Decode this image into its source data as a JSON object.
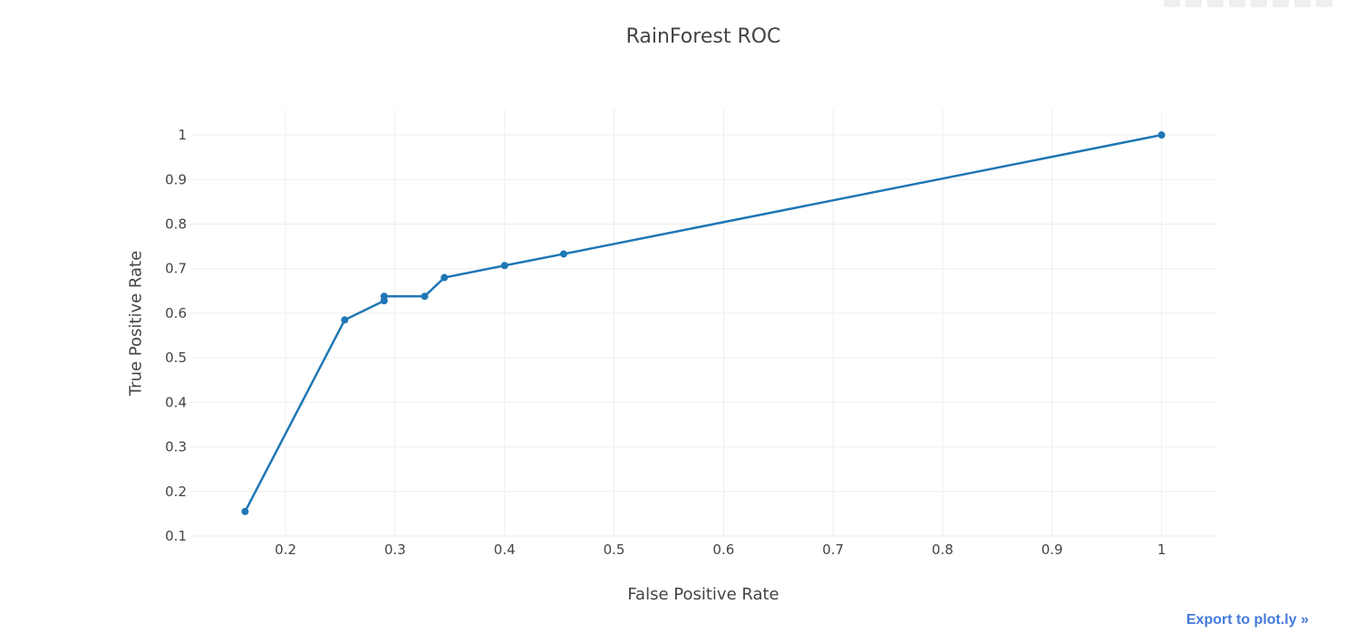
{
  "export_label": "Export to plot.ly »",
  "chart_data": {
    "type": "line",
    "title": "RainForest ROC",
    "xlabel": "False Positive Rate",
    "ylabel": "True Positive Rate",
    "xlim": [
      0.113,
      1.05
    ],
    "ylim": [
      0.1,
      1.057
    ],
    "xticks": [
      0.2,
      0.3,
      0.4,
      0.5,
      0.6,
      0.7,
      0.8,
      0.9,
      1
    ],
    "yticks": [
      0.1,
      0.2,
      0.3,
      0.4,
      0.5,
      0.6,
      0.7,
      0.8,
      0.9,
      1
    ],
    "grid": true,
    "color": "#1f77b4",
    "series": [
      {
        "x": [
          0.163,
          0.254,
          0.29,
          0.29,
          0.327,
          0.345,
          0.4,
          0.454,
          1.0
        ],
        "y": [
          0.155,
          0.585,
          0.628,
          0.638,
          0.638,
          0.68,
          0.707,
          0.733,
          1.0
        ]
      }
    ]
  }
}
